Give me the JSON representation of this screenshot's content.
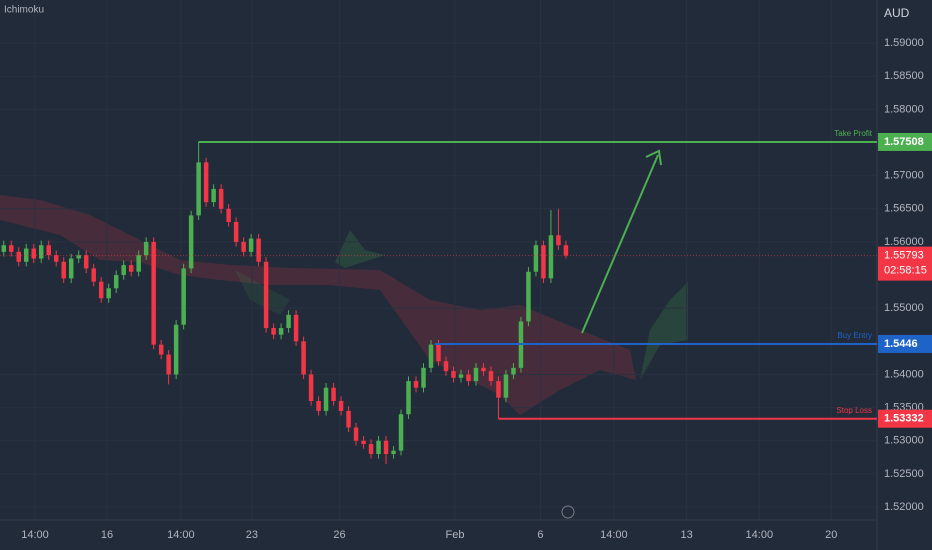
{
  "chart_data": {
    "type": "candlestick",
    "indicator": "Ichimoku",
    "currency": "AUD",
    "open": [
      1.5585,
      1.5595,
      1.5585,
      1.557,
      1.559,
      1.5575,
      1.5595,
      1.558,
      1.557,
      1.5545,
      1.5575,
      1.558,
      1.556,
      1.554,
      1.5515,
      1.553,
      1.555,
      1.5565,
      1.5555,
      1.558,
      1.56,
      1.5445,
      1.543,
      1.54,
      1.5475,
      1.556,
      1.564,
      1.572,
      1.566,
      1.568,
      1.565,
      1.563,
      1.56,
      1.5585,
      1.5605,
      1.557,
      1.547,
      1.546,
      1.547,
      1.549,
      1.545,
      1.54,
      1.536,
      1.5345,
      1.538,
      1.536,
      1.5345,
      1.532,
      1.53,
      1.5295,
      1.528,
      1.53,
      1.528,
      1.5285,
      1.534,
      1.539,
      1.538,
      1.541,
      1.5445,
      1.542,
      1.5405,
      1.5395,
      1.54,
      1.539,
      1.541,
      1.5405,
      1.539,
      1.5365,
      1.54,
      1.541,
      1.548,
      1.5555,
      1.5595,
      1.5545,
      1.561,
      1.5595
    ],
    "high": [
      1.5602,
      1.5602,
      1.5592,
      1.5597,
      1.5597,
      1.5602,
      1.5602,
      1.5587,
      1.5577,
      1.5582,
      1.5587,
      1.5587,
      1.5567,
      1.5547,
      1.5537,
      1.5557,
      1.5572,
      1.5572,
      1.5587,
      1.5607,
      1.5607,
      1.5452,
      1.5437,
      1.5482,
      1.5567,
      1.5647,
      1.5751,
      1.5727,
      1.5687,
      1.5687,
      1.5657,
      1.5637,
      1.5607,
      1.5612,
      1.5612,
      1.5577,
      1.5477,
      1.5477,
      1.5497,
      1.5497,
      1.5457,
      1.5407,
      1.5367,
      1.5387,
      1.5387,
      1.5367,
      1.5352,
      1.5327,
      1.5307,
      1.5302,
      1.5307,
      1.5307,
      1.5292,
      1.5347,
      1.5397,
      1.5397,
      1.5417,
      1.5452,
      1.5452,
      1.5427,
      1.5412,
      1.5407,
      1.5407,
      1.5417,
      1.5417,
      1.5412,
      1.5397,
      1.5407,
      1.5417,
      1.5487,
      1.5562,
      1.5602,
      1.5602,
      1.5648,
      1.565,
      1.5602
    ],
    "low": [
      1.5578,
      1.5578,
      1.5563,
      1.5563,
      1.5568,
      1.5568,
      1.5573,
      1.5563,
      1.5538,
      1.5538,
      1.5568,
      1.5553,
      1.5533,
      1.5508,
      1.5508,
      1.5523,
      1.5543,
      1.5548,
      1.5548,
      1.5573,
      1.5438,
      1.5423,
      1.5385,
      1.5393,
      1.5468,
      1.5553,
      1.5633,
      1.5653,
      1.5653,
      1.5643,
      1.5623,
      1.5593,
      1.5578,
      1.5578,
      1.5563,
      1.5463,
      1.5453,
      1.5453,
      1.5463,
      1.5443,
      1.5393,
      1.5353,
      1.5338,
      1.5338,
      1.5353,
      1.5338,
      1.5313,
      1.5293,
      1.5288,
      1.5273,
      1.5273,
      1.5265,
      1.5273,
      1.5278,
      1.5333,
      1.5373,
      1.5373,
      1.5403,
      1.5413,
      1.5398,
      1.5388,
      1.5388,
      1.5383,
      1.5383,
      1.5398,
      1.5383,
      1.5333,
      1.5358,
      1.5393,
      1.5403,
      1.5473,
      1.5548,
      1.5538,
      1.5538,
      1.5588,
      1.5575
    ],
    "close": [
      1.5595,
      1.5585,
      1.557,
      1.559,
      1.5575,
      1.5595,
      1.558,
      1.557,
      1.5545,
      1.5575,
      1.558,
      1.556,
      1.554,
      1.5515,
      1.553,
      1.555,
      1.5565,
      1.5555,
      1.558,
      1.56,
      1.5445,
      1.543,
      1.54,
      1.5475,
      1.556,
      1.564,
      1.572,
      1.566,
      1.568,
      1.565,
      1.563,
      1.56,
      1.5585,
      1.5605,
      1.557,
      1.547,
      1.546,
      1.547,
      1.549,
      1.545,
      1.54,
      1.536,
      1.5345,
      1.538,
      1.536,
      1.5345,
      1.532,
      1.53,
      1.5295,
      1.528,
      1.53,
      1.528,
      1.5285,
      1.534,
      1.539,
      1.538,
      1.541,
      1.5445,
      1.542,
      1.5405,
      1.5395,
      1.54,
      1.539,
      1.541,
      1.5405,
      1.539,
      1.5365,
      1.54,
      1.541,
      1.548,
      1.5555,
      1.5595,
      1.5545,
      1.561,
      1.5595,
      1.55793
    ],
    "up_color": "#4caf50",
    "down_color": "#f23645",
    "xlim": [
      -0.5,
      116.5
    ],
    "xticks": [
      {
        "value": 4.17,
        "label": "14:00"
      },
      {
        "value": 13.77,
        "label": "16"
      },
      {
        "value": 23.63,
        "label": "14:00"
      },
      {
        "value": 33.1,
        "label": "23"
      },
      {
        "value": 44.8,
        "label": "26"
      },
      {
        "value": 60.2,
        "label": "Feb"
      },
      {
        "value": 71.6,
        "label": "6"
      },
      {
        "value": 81.4,
        "label": "14:00"
      },
      {
        "value": 91.1,
        "label": "13"
      },
      {
        "value": 100.8,
        "label": "14:00"
      },
      {
        "value": 110.4,
        "label": "20"
      }
    ],
    "ylim": [
      1.51804,
      1.5965
    ],
    "yticks": [
      {
        "value": 1.52,
        "label": "1.52000"
      },
      {
        "value": 1.525,
        "label": "1.52500"
      },
      {
        "value": 1.53,
        "label": "1.53000"
      },
      {
        "value": 1.535,
        "label": "1.53500"
      },
      {
        "value": 1.54,
        "label": "1.54000"
      },
      {
        "value": 1.55,
        "label": "1.55000"
      },
      {
        "value": 1.56,
        "label": "1.56000"
      },
      {
        "value": 1.565,
        "label": "1.56500"
      },
      {
        "value": 1.57,
        "label": "1.57000"
      },
      {
        "value": 1.58,
        "label": "1.58000"
      },
      {
        "value": 1.585,
        "label": "1.58500"
      },
      {
        "value": 1.59,
        "label": "1.59000"
      }
    ],
    "levels": [
      {
        "name": "Take Profit",
        "value": 1.57508,
        "start": 26,
        "color": "#4caf50"
      },
      {
        "name": "Buy Entry",
        "value": 1.5446,
        "start": 57.5,
        "color": "#1e64c8"
      },
      {
        "name": "Stop Loss",
        "value": 1.53332,
        "start": 66,
        "color": "#f23645"
      }
    ],
    "current_price": 1.55793,
    "countdown": "02:58:15",
    "current_color": "#f23645"
  }
}
